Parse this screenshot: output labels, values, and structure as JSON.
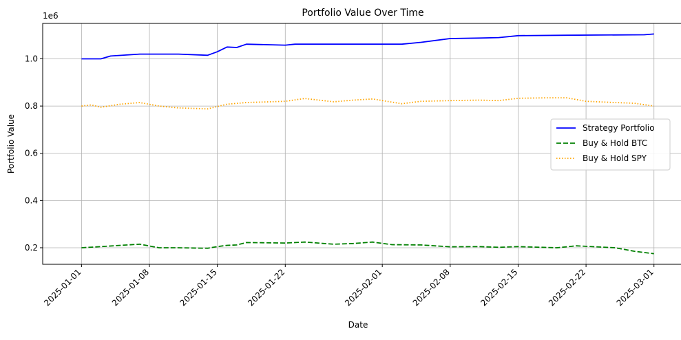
{
  "chart_data": {
    "type": "line",
    "title": "Portfolio Value Over Time",
    "xlabel": "Date",
    "ylabel": "Portfolio Value",
    "y_offset_text": "1e6",
    "xlim": [
      "2024-12-28",
      "2025-03-04"
    ],
    "ylim": [
      0.13,
      1.15
    ],
    "x_ticks": [
      "2025-01-01",
      "2025-01-08",
      "2025-01-15",
      "2025-01-22",
      "2025-02-01",
      "2025-02-08",
      "2025-02-15",
      "2025-02-22",
      "2025-03-01"
    ],
    "y_ticks": [
      0.2,
      0.4,
      0.6,
      0.8,
      1.0
    ],
    "grid": true,
    "legend_position": "center-right",
    "series": [
      {
        "name": "Strategy Portfolio",
        "color": "#0000ff",
        "style": "solid",
        "x": [
          "2025-01-01",
          "2025-01-03",
          "2025-01-04",
          "2025-01-07",
          "2025-01-11",
          "2025-01-14",
          "2025-01-15",
          "2025-01-16",
          "2025-01-17",
          "2025-01-18",
          "2025-01-22",
          "2025-01-23",
          "2025-02-03",
          "2025-02-05",
          "2025-02-08",
          "2025-02-11",
          "2025-02-13",
          "2025-02-15",
          "2025-02-20",
          "2025-02-28",
          "2025-03-01"
        ],
        "y": [
          1.0,
          1.0,
          1.012,
          1.02,
          1.02,
          1.015,
          1.03,
          1.05,
          1.048,
          1.062,
          1.058,
          1.062,
          1.062,
          1.07,
          1.086,
          1.088,
          1.09,
          1.098,
          1.1,
          1.102,
          1.105
        ]
      },
      {
        "name": "Buy & Hold BTC",
        "color": "#008000",
        "style": "dashed",
        "x": [
          "2025-01-01",
          "2025-01-03",
          "2025-01-05",
          "2025-01-07",
          "2025-01-09",
          "2025-01-11",
          "2025-01-14",
          "2025-01-15",
          "2025-01-16",
          "2025-01-17",
          "2025-01-18",
          "2025-01-22",
          "2025-01-24",
          "2025-01-27",
          "2025-01-29",
          "2025-01-31",
          "2025-02-02",
          "2025-02-05",
          "2025-02-08",
          "2025-02-11",
          "2025-02-13",
          "2025-02-15",
          "2025-02-19",
          "2025-02-21",
          "2025-02-25",
          "2025-02-27",
          "2025-03-01"
        ],
        "y": [
          0.2,
          0.205,
          0.21,
          0.215,
          0.2,
          0.2,
          0.198,
          0.205,
          0.21,
          0.212,
          0.222,
          0.22,
          0.224,
          0.215,
          0.218,
          0.224,
          0.213,
          0.212,
          0.204,
          0.205,
          0.202,
          0.205,
          0.2,
          0.208,
          0.2,
          0.185,
          0.175
        ]
      },
      {
        "name": "Buy & Hold SPY",
        "color": "#ffa500",
        "style": "dotted",
        "x": [
          "2025-01-01",
          "2025-01-02",
          "2025-01-03",
          "2025-01-05",
          "2025-01-07",
          "2025-01-09",
          "2025-01-11",
          "2025-01-14",
          "2025-01-16",
          "2025-01-18",
          "2025-01-22",
          "2025-01-24",
          "2025-01-27",
          "2025-01-29",
          "2025-01-31",
          "2025-02-03",
          "2025-02-05",
          "2025-02-08",
          "2025-02-11",
          "2025-02-13",
          "2025-02-15",
          "2025-02-18",
          "2025-02-20",
          "2025-02-22",
          "2025-02-25",
          "2025-02-27",
          "2025-03-01"
        ],
        "y": [
          0.8,
          0.805,
          0.795,
          0.808,
          0.815,
          0.8,
          0.792,
          0.788,
          0.808,
          0.815,
          0.82,
          0.832,
          0.818,
          0.825,
          0.83,
          0.81,
          0.82,
          0.823,
          0.825,
          0.823,
          0.833,
          0.835,
          0.835,
          0.82,
          0.815,
          0.812,
          0.8
        ]
      }
    ]
  }
}
